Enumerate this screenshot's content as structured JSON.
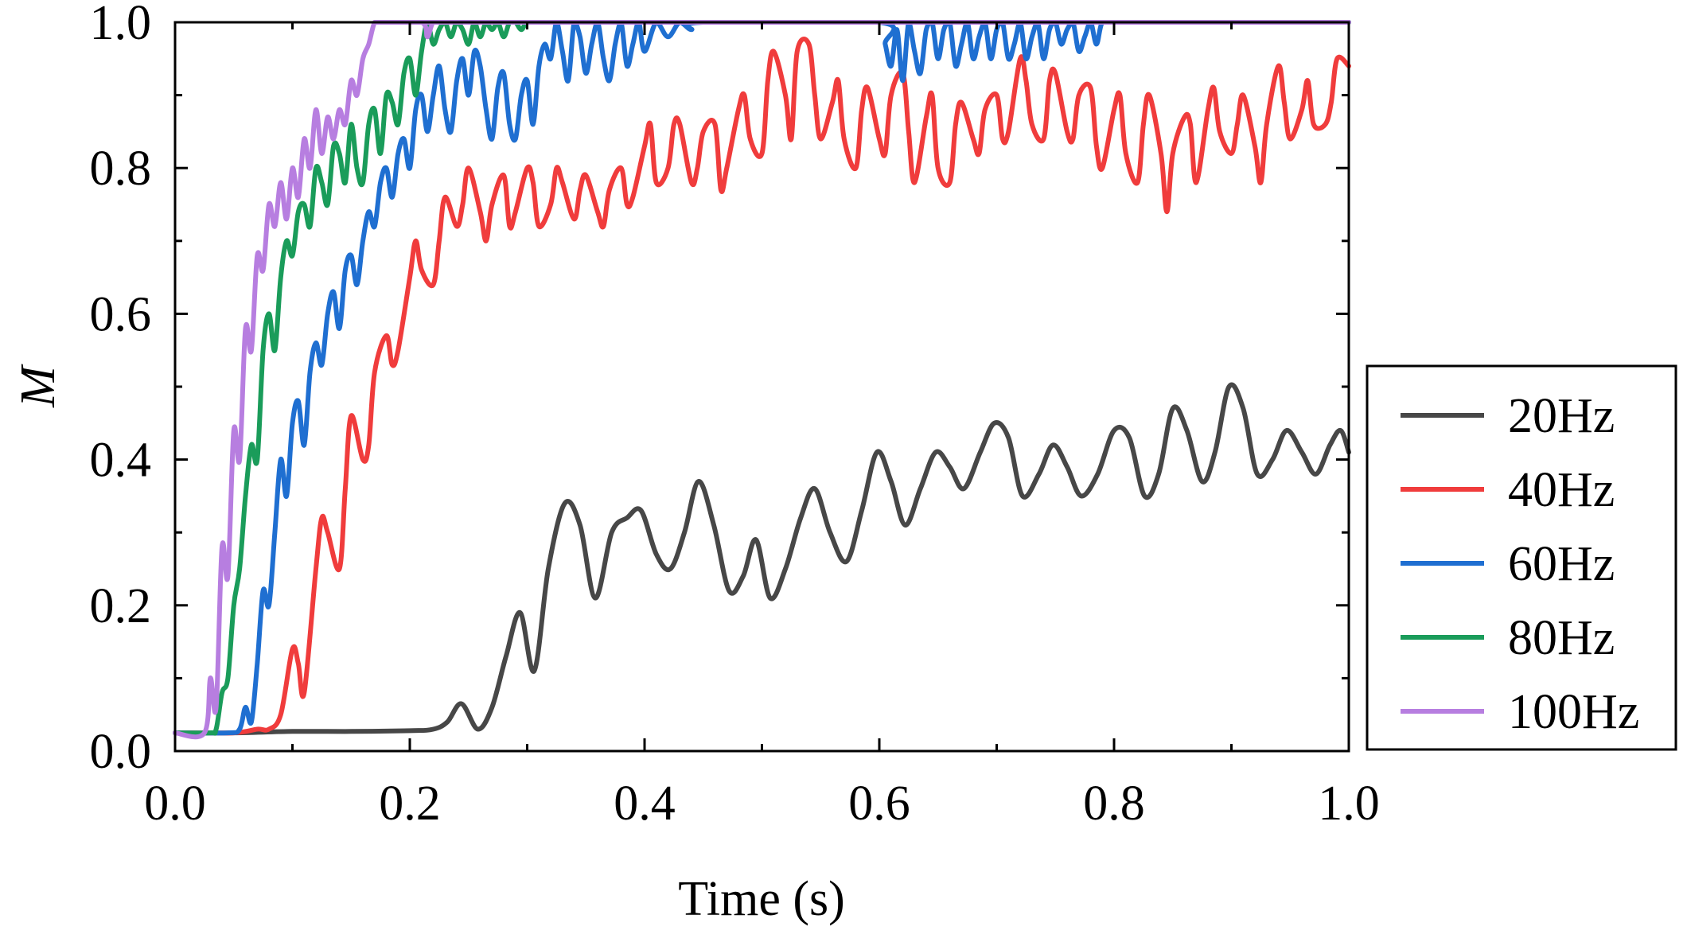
{
  "chart_data": {
    "type": "line",
    "title": "",
    "xlabel": "Time (s)",
    "ylabel": "M",
    "xlim": [
      0.0,
      1.0
    ],
    "ylim": [
      0.0,
      1.0
    ],
    "xticks": [
      "0.0",
      "0.2",
      "0.4",
      "0.6",
      "0.8",
      "1.0"
    ],
    "yticks": [
      "0.0",
      "0.2",
      "0.4",
      "0.6",
      "0.8",
      "1.0"
    ],
    "grid": false,
    "legend_position": "right-outside",
    "series": [
      {
        "name": "20Hz",
        "color": "#474747",
        "x": [
          0.0,
          0.05,
          0.1,
          0.15,
          0.2,
          0.22,
          0.232,
          0.244,
          0.258,
          0.27,
          0.282,
          0.294,
          0.306,
          0.318,
          0.332,
          0.345,
          0.358,
          0.372,
          0.385,
          0.397,
          0.41,
          0.422,
          0.434,
          0.446,
          0.459,
          0.472,
          0.484,
          0.495,
          0.507,
          0.52,
          0.533,
          0.545,
          0.558,
          0.572,
          0.585,
          0.598,
          0.61,
          0.622,
          0.635,
          0.648,
          0.66,
          0.672,
          0.686,
          0.698,
          0.71,
          0.722,
          0.736,
          0.748,
          0.76,
          0.772,
          0.786,
          0.8,
          0.813,
          0.826,
          0.838,
          0.85,
          0.862,
          0.875,
          0.886,
          0.898,
          0.91,
          0.922,
          0.935,
          0.947,
          0.96,
          0.972,
          0.984,
          0.993,
          1.0
        ],
        "y": [
          0.025,
          0.025,
          0.027,
          0.027,
          0.028,
          0.03,
          0.04,
          0.065,
          0.03,
          0.06,
          0.13,
          0.19,
          0.11,
          0.25,
          0.34,
          0.31,
          0.21,
          0.3,
          0.32,
          0.33,
          0.27,
          0.25,
          0.3,
          0.37,
          0.31,
          0.22,
          0.24,
          0.29,
          0.21,
          0.25,
          0.32,
          0.36,
          0.3,
          0.26,
          0.33,
          0.41,
          0.37,
          0.31,
          0.36,
          0.41,
          0.39,
          0.36,
          0.41,
          0.45,
          0.43,
          0.35,
          0.38,
          0.42,
          0.39,
          0.35,
          0.38,
          0.44,
          0.43,
          0.35,
          0.38,
          0.47,
          0.44,
          0.37,
          0.41,
          0.5,
          0.47,
          0.38,
          0.4,
          0.44,
          0.41,
          0.38,
          0.42,
          0.44,
          0.41
        ]
      },
      {
        "name": "40Hz",
        "color": "#f03c3c",
        "x": [
          0.0,
          0.05,
          0.07,
          0.08,
          0.09,
          0.1,
          0.105,
          0.11,
          0.12,
          0.125,
          0.13,
          0.14,
          0.145,
          0.15,
          0.16,
          0.165,
          0.17,
          0.18,
          0.185,
          0.19,
          0.2,
          0.205,
          0.21,
          0.22,
          0.225,
          0.23,
          0.24,
          0.245,
          0.25,
          0.26,
          0.265,
          0.27,
          0.28,
          0.285,
          0.29,
          0.3,
          0.305,
          0.31,
          0.32,
          0.325,
          0.33,
          0.34,
          0.345,
          0.35,
          0.36,
          0.365,
          0.37,
          0.38,
          0.385,
          0.39,
          0.4,
          0.405,
          0.41,
          0.42,
          0.425,
          0.43,
          0.44,
          0.445,
          0.45,
          0.46,
          0.465,
          0.47,
          0.48,
          0.485,
          0.49,
          0.5,
          0.505,
          0.51,
          0.52,
          0.525,
          0.53,
          0.54,
          0.545,
          0.55,
          0.56,
          0.565,
          0.57,
          0.58,
          0.585,
          0.59,
          0.6,
          0.605,
          0.61,
          0.62,
          0.625,
          0.63,
          0.64,
          0.645,
          0.65,
          0.66,
          0.665,
          0.67,
          0.68,
          0.685,
          0.69,
          0.7,
          0.705,
          0.71,
          0.72,
          0.725,
          0.73,
          0.74,
          0.745,
          0.75,
          0.76,
          0.765,
          0.77,
          0.78,
          0.785,
          0.79,
          0.8,
          0.805,
          0.81,
          0.82,
          0.825,
          0.83,
          0.84,
          0.845,
          0.85,
          0.86,
          0.865,
          0.87,
          0.88,
          0.885,
          0.89,
          0.9,
          0.905,
          0.91,
          0.92,
          0.925,
          0.93,
          0.94,
          0.945,
          0.95,
          0.96,
          0.965,
          0.97,
          0.98,
          0.985,
          0.99,
          1.0
        ],
        "y": [
          0.025,
          0.025,
          0.03,
          0.03,
          0.05,
          0.14,
          0.12,
          0.08,
          0.25,
          0.32,
          0.3,
          0.25,
          0.36,
          0.46,
          0.4,
          0.42,
          0.52,
          0.57,
          0.53,
          0.55,
          0.65,
          0.7,
          0.66,
          0.64,
          0.7,
          0.76,
          0.72,
          0.75,
          0.8,
          0.74,
          0.7,
          0.75,
          0.79,
          0.72,
          0.74,
          0.8,
          0.78,
          0.72,
          0.75,
          0.8,
          0.78,
          0.73,
          0.77,
          0.79,
          0.74,
          0.72,
          0.77,
          0.8,
          0.75,
          0.76,
          0.83,
          0.86,
          0.78,
          0.8,
          0.86,
          0.86,
          0.78,
          0.8,
          0.85,
          0.86,
          0.77,
          0.8,
          0.88,
          0.9,
          0.84,
          0.82,
          0.92,
          0.96,
          0.9,
          0.84,
          0.96,
          0.97,
          0.9,
          0.84,
          0.89,
          0.92,
          0.84,
          0.8,
          0.88,
          0.91,
          0.84,
          0.82,
          0.9,
          0.93,
          0.85,
          0.78,
          0.87,
          0.9,
          0.8,
          0.78,
          0.86,
          0.89,
          0.84,
          0.82,
          0.88,
          0.9,
          0.84,
          0.85,
          0.95,
          0.92,
          0.86,
          0.84,
          0.92,
          0.93,
          0.85,
          0.84,
          0.9,
          0.91,
          0.83,
          0.8,
          0.88,
          0.9,
          0.82,
          0.78,
          0.86,
          0.9,
          0.82,
          0.74,
          0.82,
          0.87,
          0.86,
          0.78,
          0.88,
          0.91,
          0.85,
          0.82,
          0.86,
          0.9,
          0.83,
          0.78,
          0.86,
          0.94,
          0.89,
          0.84,
          0.88,
          0.92,
          0.86,
          0.86,
          0.89,
          0.95,
          0.94
        ]
      },
      {
        "name": "60Hz",
        "color": "#1f6fd1",
        "x": [
          0.0,
          0.045,
          0.055,
          0.06,
          0.065,
          0.07,
          0.075,
          0.08,
          0.085,
          0.09,
          0.095,
          0.1,
          0.105,
          0.11,
          0.115,
          0.12,
          0.125,
          0.13,
          0.135,
          0.14,
          0.145,
          0.15,
          0.155,
          0.16,
          0.165,
          0.17,
          0.175,
          0.18,
          0.185,
          0.19,
          0.195,
          0.2,
          0.205,
          0.21,
          0.215,
          0.22,
          0.225,
          0.23,
          0.235,
          0.24,
          0.245,
          0.25,
          0.255,
          0.26,
          0.265,
          0.27,
          0.275,
          0.28,
          0.285,
          0.29,
          0.295,
          0.3,
          0.305,
          0.31,
          0.315,
          0.32,
          0.325,
          0.33,
          0.335,
          0.34,
          0.345,
          0.35,
          0.355,
          0.36,
          0.365,
          0.37,
          0.375,
          0.38,
          0.385,
          0.39,
          0.395,
          0.4,
          0.41,
          0.42,
          0.43,
          0.44,
          0.45,
          0.6,
          0.605,
          0.61,
          0.615,
          0.62,
          0.625,
          0.63,
          0.635,
          0.64,
          0.645,
          0.65,
          0.655,
          0.66,
          0.665,
          0.67,
          0.675,
          0.68,
          0.685,
          0.69,
          0.695,
          0.7,
          0.705,
          0.71,
          0.715,
          0.72,
          0.725,
          0.73,
          0.735,
          0.74,
          0.745,
          0.75,
          0.755,
          0.76,
          0.765,
          0.77,
          0.775,
          0.78,
          0.785,
          0.79,
          0.8,
          1.0
        ],
        "y": [
          0.025,
          0.025,
          0.03,
          0.06,
          0.04,
          0.12,
          0.22,
          0.2,
          0.3,
          0.4,
          0.35,
          0.45,
          0.48,
          0.42,
          0.52,
          0.56,
          0.53,
          0.6,
          0.63,
          0.58,
          0.66,
          0.68,
          0.64,
          0.7,
          0.74,
          0.72,
          0.78,
          0.8,
          0.76,
          0.82,
          0.84,
          0.8,
          0.88,
          0.9,
          0.85,
          0.9,
          0.94,
          0.88,
          0.85,
          0.92,
          0.95,
          0.9,
          0.96,
          0.94,
          0.88,
          0.84,
          0.91,
          0.93,
          0.86,
          0.84,
          0.9,
          0.92,
          0.86,
          0.94,
          0.97,
          0.95,
          1.0,
          0.96,
          0.92,
          1.0,
          0.98,
          0.93,
          0.97,
          1.0,
          0.95,
          0.92,
          0.97,
          1.0,
          0.94,
          0.97,
          1.0,
          0.96,
          1.0,
          0.98,
          1.0,
          0.99,
          1.0,
          1.0,
          0.97,
          0.94,
          0.99,
          0.92,
          1.0,
          0.96,
          0.93,
          0.99,
          1.0,
          0.95,
          0.99,
          1.0,
          0.94,
          0.97,
          1.0,
          0.95,
          0.98,
          1.0,
          0.95,
          0.99,
          1.0,
          0.95,
          0.97,
          1.0,
          0.95,
          0.98,
          1.0,
          0.95,
          0.99,
          1.0,
          0.97,
          0.99,
          1.0,
          0.96,
          0.98,
          1.0,
          0.97,
          1.0,
          1.0,
          1.0
        ]
      },
      {
        "name": "80Hz",
        "color": "#1a9c5a",
        "x": [
          0.0,
          0.03,
          0.035,
          0.04,
          0.045,
          0.05,
          0.055,
          0.06,
          0.065,
          0.07,
          0.075,
          0.08,
          0.085,
          0.09,
          0.095,
          0.1,
          0.105,
          0.11,
          0.115,
          0.12,
          0.125,
          0.13,
          0.135,
          0.14,
          0.145,
          0.15,
          0.155,
          0.16,
          0.165,
          0.17,
          0.175,
          0.18,
          0.185,
          0.19,
          0.195,
          0.2,
          0.205,
          0.21,
          0.215,
          0.22,
          0.225,
          0.23,
          0.235,
          0.24,
          0.245,
          0.25,
          0.255,
          0.26,
          0.265,
          0.27,
          0.275,
          0.28,
          0.285,
          0.29,
          0.295,
          0.3,
          0.31,
          0.32,
          1.0
        ],
        "y": [
          0.025,
          0.025,
          0.03,
          0.08,
          0.1,
          0.2,
          0.25,
          0.35,
          0.42,
          0.4,
          0.55,
          0.6,
          0.55,
          0.65,
          0.7,
          0.68,
          0.74,
          0.75,
          0.72,
          0.8,
          0.78,
          0.75,
          0.83,
          0.82,
          0.78,
          0.86,
          0.8,
          0.78,
          0.86,
          0.88,
          0.82,
          0.9,
          0.89,
          0.86,
          0.93,
          0.95,
          0.9,
          0.96,
          1.0,
          0.97,
          0.99,
          1.0,
          0.98,
          1.0,
          0.99,
          0.97,
          1.0,
          0.98,
          1.0,
          0.99,
          1.0,
          0.98,
          1.0,
          1.0,
          0.99,
          1.0,
          1.0,
          1.0,
          1.0
        ]
      },
      {
        "name": "100Hz",
        "color": "#b77ee0",
        "x": [
          0.0,
          0.025,
          0.03,
          0.035,
          0.04,
          0.045,
          0.05,
          0.055,
          0.06,
          0.065,
          0.07,
          0.075,
          0.08,
          0.085,
          0.09,
          0.095,
          0.1,
          0.105,
          0.11,
          0.115,
          0.12,
          0.125,
          0.13,
          0.135,
          0.14,
          0.145,
          0.15,
          0.155,
          0.16,
          0.165,
          0.17,
          0.175,
          0.18,
          0.21,
          0.215,
          0.22,
          0.23,
          1.0
        ],
        "y": [
          0.025,
          0.025,
          0.1,
          0.06,
          0.28,
          0.24,
          0.44,
          0.4,
          0.58,
          0.55,
          0.68,
          0.66,
          0.75,
          0.72,
          0.78,
          0.73,
          0.8,
          0.76,
          0.84,
          0.8,
          0.88,
          0.82,
          0.87,
          0.84,
          0.88,
          0.86,
          0.92,
          0.9,
          0.95,
          0.97,
          1.0,
          1.0,
          1.0,
          1.0,
          0.98,
          1.0,
          1.0,
          1.0
        ]
      }
    ]
  }
}
